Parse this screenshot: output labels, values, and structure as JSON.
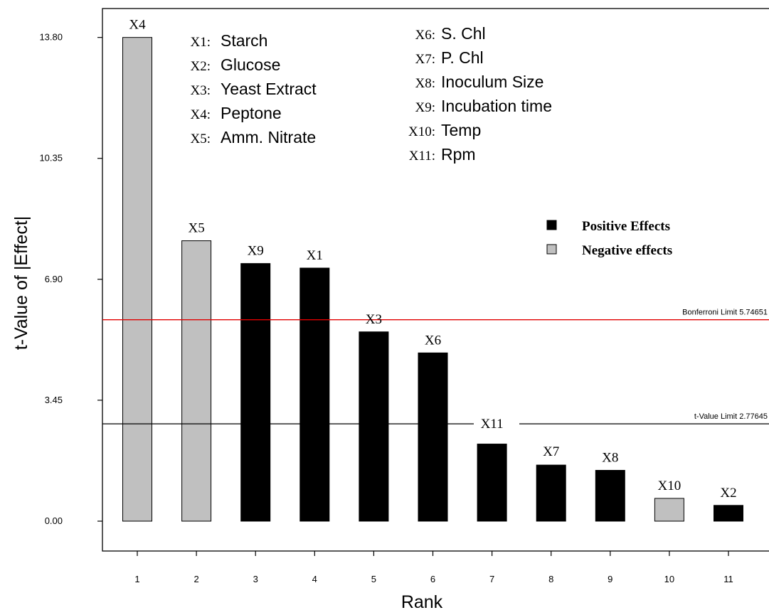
{
  "chart_data": {
    "type": "bar",
    "xlabel": "Rank",
    "ylabel": "t-Value of |Effect|",
    "ylim": [
      0,
      14.8
    ],
    "yticks": [
      "0.00",
      "3.45",
      "6.90",
      "10.35",
      "13.80"
    ],
    "xticks": [
      "1",
      "2",
      "3",
      "4",
      "5",
      "6",
      "7",
      "8",
      "9",
      "10",
      "11"
    ],
    "grid": false,
    "bars": [
      {
        "rank": 1,
        "label": "X4",
        "value": 13.8,
        "effect": "negative"
      },
      {
        "rank": 2,
        "label": "X5",
        "value": 8.0,
        "effect": "negative"
      },
      {
        "rank": 3,
        "label": "X9",
        "value": 7.35,
        "effect": "positive"
      },
      {
        "rank": 4,
        "label": "X1",
        "value": 7.22,
        "effect": "positive"
      },
      {
        "rank": 5,
        "label": "X3",
        "value": 5.4,
        "effect": "positive"
      },
      {
        "rank": 6,
        "label": "X6",
        "value": 4.8,
        "effect": "positive"
      },
      {
        "rank": 7,
        "label": "X11",
        "value": 2.2,
        "effect": "positive"
      },
      {
        "rank": 8,
        "label": "X7",
        "value": 1.6,
        "effect": "positive"
      },
      {
        "rank": 9,
        "label": "X8",
        "value": 1.45,
        "effect": "positive"
      },
      {
        "rank": 10,
        "label": "X10",
        "value": 0.65,
        "effect": "negative"
      },
      {
        "rank": 11,
        "label": "X2",
        "value": 0.45,
        "effect": "positive"
      }
    ],
    "reference_lines": [
      {
        "label": "Bonferroni Limit 5.74651",
        "value": 5.74651,
        "color": "#e00000"
      },
      {
        "label": "t-Value Limit 2.77645",
        "value": 2.77645,
        "color": "#000000"
      }
    ],
    "factor_legend": [
      {
        "code": "X1",
        "name": "Starch"
      },
      {
        "code": "X2",
        "name": "Glucose"
      },
      {
        "code": "X3",
        "name": "Yeast Extract"
      },
      {
        "code": "X4",
        "name": "Peptone"
      },
      {
        "code": "X5",
        "name": "Amm. Nitrate"
      },
      {
        "code": "X6",
        "name": "S. Chl"
      },
      {
        "code": "X7",
        "name": "P. Chl"
      },
      {
        "code": "X8",
        "name": "Inoculum Size"
      },
      {
        "code": "X9",
        "name": "Incubation time"
      },
      {
        "code": "X10",
        "name": "Temp"
      },
      {
        "code": "X11",
        "name": "Rpm"
      }
    ],
    "effect_legend": [
      {
        "key": "positive",
        "label": "Positive Effects",
        "color": "#000000"
      },
      {
        "key": "negative",
        "label": "Negative effects",
        "color": "#c0c0c0"
      }
    ]
  }
}
